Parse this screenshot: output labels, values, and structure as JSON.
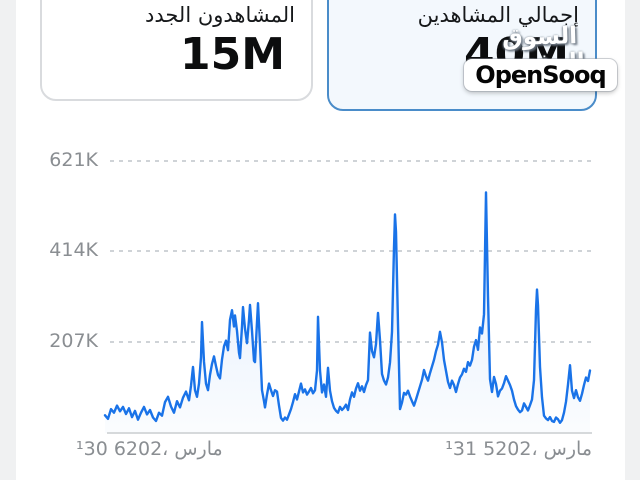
{
  "page": {
    "background_color": "#f0f1f2",
    "panel_color": "#ffffff"
  },
  "metric_cards": [
    {
      "id": "new_viewers",
      "title": "المشاهدون الجدد",
      "value": "15M",
      "selected": false
    },
    {
      "id": "total_viewers",
      "title": "إجمالي المشاهدين",
      "value": "40M",
      "selected": true,
      "accent_color": "#4a8cc9",
      "bg_color": "#f3f8fd"
    }
  ],
  "watermark": {
    "logo_text": "السوق المفتوح",
    "brand_text": "OpenSooq"
  },
  "chart_data": {
    "type": "line",
    "series_name": "إجمالي المشاهدين",
    "title": "",
    "xlabel": "",
    "ylabel": "",
    "legend": "none",
    "grid": "horizontal dashed",
    "line_color": "#1a73e8",
    "fill": "light-blue gradient under line",
    "ylim_k": [
      0,
      660
    ],
    "y_ticks": [
      {
        "label": "621K",
        "value_k": 621
      },
      {
        "label": "414K",
        "value_k": 414
      },
      {
        "label": "207K",
        "value_k": 207
      }
    ],
    "x_ticks": [
      {
        "label": "¹30 6202، مارس",
        "position": "left"
      },
      {
        "label": "¹31 5202، مارس",
        "position": "right"
      }
    ],
    "points_units": "[x_pixel(105-590), value_thousands]",
    "points": [
      [
        105,
        38
      ],
      [
        108,
        30
      ],
      [
        111,
        52
      ],
      [
        114,
        44
      ],
      [
        117,
        60
      ],
      [
        120,
        47
      ],
      [
        123,
        57
      ],
      [
        126,
        41
      ],
      [
        129,
        54
      ],
      [
        132,
        34
      ],
      [
        135,
        48
      ],
      [
        138,
        28
      ],
      [
        141,
        44
      ],
      [
        144,
        57
      ],
      [
        147,
        40
      ],
      [
        150,
        50
      ],
      [
        153,
        33
      ],
      [
        156,
        25
      ],
      [
        159,
        44
      ],
      [
        162,
        37
      ],
      [
        165,
        68
      ],
      [
        168,
        80
      ],
      [
        171,
        58
      ],
      [
        174,
        44
      ],
      [
        177,
        70
      ],
      [
        180,
        56
      ],
      [
        183,
        78
      ],
      [
        186,
        92
      ],
      [
        189,
        72
      ],
      [
        191,
        105
      ],
      [
        193,
        148
      ],
      [
        195,
        95
      ],
      [
        197,
        80
      ],
      [
        199,
        110
      ],
      [
        201,
        170
      ],
      [
        202,
        250
      ],
      [
        204,
        160
      ],
      [
        206,
        110
      ],
      [
        208,
        95
      ],
      [
        210,
        130
      ],
      [
        212,
        155
      ],
      [
        214,
        172
      ],
      [
        216,
        150
      ],
      [
        218,
        130
      ],
      [
        220,
        122
      ],
      [
        222,
        165
      ],
      [
        224,
        195
      ],
      [
        226,
        208
      ],
      [
        228,
        186
      ],
      [
        230,
        255
      ],
      [
        232,
        277
      ],
      [
        234,
        240
      ],
      [
        235,
        265
      ],
      [
        237,
        230
      ],
      [
        239,
        180
      ],
      [
        240,
        168
      ],
      [
        242,
        240
      ],
      [
        243,
        284
      ],
      [
        245,
        235
      ],
      [
        247,
        202
      ],
      [
        249,
        255
      ],
      [
        250,
        289
      ],
      [
        252,
        230
      ],
      [
        254,
        162
      ],
      [
        255,
        159
      ],
      [
        257,
        250
      ],
      [
        258,
        293
      ],
      [
        260,
        200
      ],
      [
        262,
        95
      ],
      [
        264,
        70
      ],
      [
        265,
        56
      ],
      [
        267,
        85
      ],
      [
        269,
        110
      ],
      [
        271,
        95
      ],
      [
        273,
        82
      ],
      [
        275,
        95
      ],
      [
        277,
        92
      ],
      [
        279,
        60
      ],
      [
        281,
        32
      ],
      [
        283,
        26
      ],
      [
        285,
        33
      ],
      [
        287,
        28
      ],
      [
        289,
        40
      ],
      [
        291,
        52
      ],
      [
        293,
        68
      ],
      [
        295,
        86
      ],
      [
        297,
        74
      ],
      [
        299,
        92
      ],
      [
        301,
        110
      ],
      [
        303,
        90
      ],
      [
        305,
        97
      ],
      [
        307,
        85
      ],
      [
        309,
        92
      ],
      [
        311,
        100
      ],
      [
        313,
        88
      ],
      [
        315,
        95
      ],
      [
        317,
        140
      ],
      [
        318,
        262
      ],
      [
        320,
        140
      ],
      [
        322,
        90
      ],
      [
        324,
        108
      ],
      [
        326,
        80
      ],
      [
        328,
        146
      ],
      [
        330,
        94
      ],
      [
        332,
        70
      ],
      [
        334,
        55
      ],
      [
        336,
        48
      ],
      [
        338,
        44
      ],
      [
        340,
        57
      ],
      [
        342,
        50
      ],
      [
        344,
        55
      ],
      [
        346,
        62
      ],
      [
        348,
        50
      ],
      [
        350,
        74
      ],
      [
        352,
        90
      ],
      [
        354,
        80
      ],
      [
        356,
        99
      ],
      [
        358,
        111
      ],
      [
        360,
        94
      ],
      [
        362,
        104
      ],
      [
        364,
        91
      ],
      [
        366,
        107
      ],
      [
        368,
        118
      ],
      [
        370,
        226
      ],
      [
        372,
        184
      ],
      [
        374,
        170
      ],
      [
        376,
        200
      ],
      [
        378,
        271
      ],
      [
        380,
        209
      ],
      [
        382,
        132
      ],
      [
        384,
        117
      ],
      [
        386,
        108
      ],
      [
        388,
        124
      ],
      [
        390,
        158
      ],
      [
        392,
        228
      ],
      [
        394,
        420
      ],
      [
        395,
        495
      ],
      [
        396,
        455
      ],
      [
        398,
        245
      ],
      [
        400,
        52
      ],
      [
        402,
        67
      ],
      [
        404,
        89
      ],
      [
        406,
        85
      ],
      [
        408,
        94
      ],
      [
        410,
        81
      ],
      [
        412,
        70
      ],
      [
        414,
        60
      ],
      [
        416,
        74
      ],
      [
        418,
        89
      ],
      [
        420,
        104
      ],
      [
        422,
        119
      ],
      [
        424,
        141
      ],
      [
        426,
        127
      ],
      [
        428,
        117
      ],
      [
        430,
        134
      ],
      [
        432,
        149
      ],
      [
        434,
        164
      ],
      [
        436,
        184
      ],
      [
        438,
        199
      ],
      [
        440,
        228
      ],
      [
        442,
        204
      ],
      [
        444,
        164
      ],
      [
        446,
        139
      ],
      [
        448,
        114
      ],
      [
        450,
        100
      ],
      [
        452,
        117
      ],
      [
        454,
        107
      ],
      [
        456,
        91
      ],
      [
        458,
        109
      ],
      [
        460,
        124
      ],
      [
        462,
        131
      ],
      [
        464,
        144
      ],
      [
        466,
        137
      ],
      [
        468,
        159
      ],
      [
        470,
        151
      ],
      [
        472,
        164
      ],
      [
        474,
        194
      ],
      [
        476,
        209
      ],
      [
        478,
        187
      ],
      [
        480,
        238
      ],
      [
        482,
        224
      ],
      [
        484,
        268
      ],
      [
        486,
        545
      ],
      [
        488,
        308
      ],
      [
        490,
        120
      ],
      [
        492,
        91
      ],
      [
        494,
        125
      ],
      [
        496,
        109
      ],
      [
        498,
        81
      ],
      [
        500,
        94
      ],
      [
        502,
        99
      ],
      [
        504,
        111
      ],
      [
        506,
        127
      ],
      [
        508,
        117
      ],
      [
        510,
        107
      ],
      [
        512,
        94
      ],
      [
        514,
        74
      ],
      [
        516,
        59
      ],
      [
        518,
        51
      ],
      [
        520,
        45
      ],
      [
        522,
        49
      ],
      [
        524,
        65
      ],
      [
        526,
        57
      ],
      [
        528,
        49
      ],
      [
        530,
        61
      ],
      [
        532,
        74
      ],
      [
        534,
        118
      ],
      [
        536,
        278
      ],
      [
        537,
        324
      ],
      [
        538,
        288
      ],
      [
        540,
        148
      ],
      [
        542,
        79
      ],
      [
        544,
        37
      ],
      [
        546,
        31
      ],
      [
        548,
        27
      ],
      [
        550,
        34
      ],
      [
        552,
        25
      ],
      [
        554,
        23
      ],
      [
        556,
        33
      ],
      [
        558,
        29
      ],
      [
        560,
        21
      ],
      [
        562,
        27
      ],
      [
        564,
        44
      ],
      [
        566,
        69
      ],
      [
        568,
        108
      ],
      [
        570,
        152
      ],
      [
        572,
        94
      ],
      [
        574,
        77
      ],
      [
        576,
        95
      ],
      [
        578,
        79
      ],
      [
        580,
        71
      ],
      [
        582,
        87
      ],
      [
        584,
        107
      ],
      [
        586,
        124
      ],
      [
        588,
        116
      ],
      [
        590,
        140
      ]
    ]
  }
}
